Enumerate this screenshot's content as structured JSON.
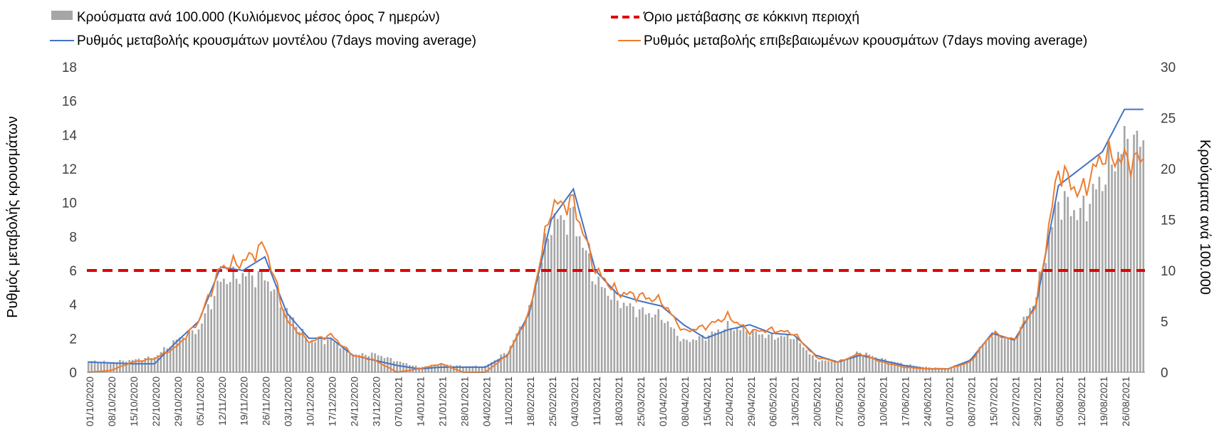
{
  "chart_data": {
    "type": "bar+line",
    "title": "",
    "legend_placement": "top",
    "legend": [
      {
        "key": "bars",
        "name": "Κρούσματα ανά 100.000 (Κυλιόμενος μέσος όρος 7 ημερών)",
        "color": "#a6a6a6"
      },
      {
        "key": "threshold",
        "name": "Όριο μετάβασης σε κόκκινη περιοχή",
        "color": "#e00000"
      },
      {
        "key": "model",
        "name": "Ρυθμός μεταβολής κρουσμάτων μοντέλου (7days moving average)",
        "color": "#4472c4"
      },
      {
        "key": "confirmed",
        "name": "Ρυθμός μεταβολής επιβεβαιωμένων κρουσμάτων (7days moving average)",
        "color": "#ed7d31"
      }
    ],
    "ylabel_left": "Ρυθμός μεταβολής κρουσμάτων",
    "ylabel_right": "Κρούσματα ανά 100.000",
    "ylim_left": [
      0,
      18
    ],
    "yticks_left": [
      0,
      2,
      4,
      6,
      8,
      10,
      12,
      14,
      16,
      18
    ],
    "ylim_right": [
      0,
      30
    ],
    "yticks_right": [
      0,
      5,
      10,
      15,
      20,
      25,
      30
    ],
    "grid": false,
    "x_tick_labels": [
      "01/10/2020",
      "08/10/2020",
      "15/10/2020",
      "22/10/2020",
      "29/10/2020",
      "05/11/2020",
      "12/11/2020",
      "19/11/2020",
      "26/11/2020",
      "03/12/2020",
      "10/12/2020",
      "17/12/2020",
      "24/12/2020",
      "31/12/2020",
      "07/01/2021",
      "14/01/2021",
      "21/01/2021",
      "28/01/2021",
      "04/02/2021",
      "11/02/2021",
      "18/02/2021",
      "25/02/2021",
      "04/03/2021",
      "11/03/2021",
      "18/03/2021",
      "25/03/2021",
      "01/04/2021",
      "08/04/2021",
      "15/04/2021",
      "22/04/2021",
      "29/04/2021",
      "06/05/2021",
      "13/05/2021",
      "20/05/2021",
      "27/05/2021",
      "03/06/2021",
      "10/06/2021",
      "17/06/2021",
      "24/06/2021",
      "01/07/2021",
      "08/07/2021",
      "15/07/2021",
      "22/07/2021",
      "29/07/2021",
      "05/08/2021",
      "12/08/2021",
      "19/08/2021",
      "26/08/2021"
    ],
    "threshold_left_value": 6,
    "bars_weekly_right_axis": [
      1.1,
      1.0,
      1.2,
      1.5,
      3.2,
      4.2,
      9.0,
      9.5,
      9.4,
      6.0,
      3.0,
      3.2,
      1.7,
      1.8,
      1.1,
      0.5,
      0.8,
      0.6,
      0.6,
      2.0,
      6.0,
      14.8,
      15.2,
      9.0,
      7.0,
      6.0,
      5.5,
      3.0,
      3.5,
      4.5,
      4.0,
      3.5,
      3.5,
      1.2,
      1.0,
      2.0,
      1.3,
      0.8,
      0.5,
      0.4,
      1.2,
      3.8,
      3.2,
      7.5,
      17.0,
      15.5,
      19.0,
      22.5
    ],
    "model_weekly_left_axis": [
      0.6,
      0.55,
      0.5,
      0.5,
      1.8,
      3.0,
      6.2,
      6.0,
      6.8,
      3.5,
      2.0,
      2.0,
      1.0,
      0.7,
      0.4,
      0.2,
      0.3,
      0.3,
      0.3,
      1.0,
      3.5,
      9.0,
      10.8,
      6.0,
      4.6,
      4.2,
      3.9,
      2.8,
      2.0,
      2.5,
      2.8,
      2.3,
      2.2,
      1.0,
      0.6,
      1.0,
      0.7,
      0.4,
      0.2,
      0.2,
      0.7,
      2.3,
      1.9,
      4.0,
      11.0,
      12.0,
      13.0,
      15.5
    ],
    "confirmed_weekly_left_axis": [
      0.0,
      0.1,
      0.6,
      0.8,
      1.5,
      3.0,
      6.2,
      6.5,
      7.5,
      3.0,
      1.8,
      2.2,
      1.0,
      0.7,
      0.0,
      0.2,
      0.5,
      0.0,
      0.0,
      1.0,
      3.5,
      9.8,
      10.0,
      6.0,
      4.7,
      4.5,
      4.2,
      2.4,
      2.7,
      3.3,
      2.4,
      2.5,
      2.3,
      0.9,
      0.6,
      1.1,
      0.6,
      0.3,
      0.2,
      0.2,
      0.6,
      2.3,
      1.9,
      4.0,
      12.0,
      10.5,
      12.8,
      12.5
    ]
  }
}
